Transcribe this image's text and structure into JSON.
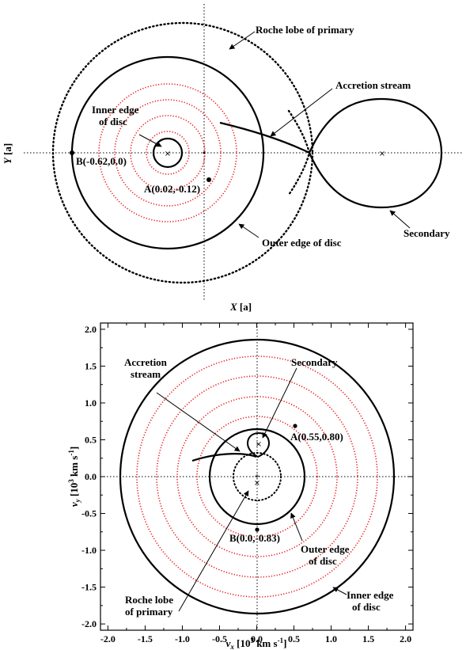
{
  "colors": {
    "red_ring": "#e8191c",
    "ink": "#000000"
  },
  "top_panel": {
    "labels": {
      "roche_lobe": "Roche lobe of primary",
      "accretion_stream": "Accretion stream",
      "inner_edge_1": "Inner edge",
      "inner_edge_2": "of disc",
      "point_b": "B(-0.62,0.0)",
      "point_a": "A(0.02,-0.12)",
      "secondary": "Secondary",
      "outer_edge": "Outer edge of disc"
    },
    "xlabel_var": "X",
    "xlabel_unit": " [a]",
    "ylabel_var": "Y",
    "ylabel_unit": " [a]",
    "points": {
      "A": [
        0.02,
        -0.12
      ],
      "B": [
        -0.62,
        0.0
      ]
    }
  },
  "bottom_panel": {
    "labels": {
      "accretion_1": "Accretion",
      "accretion_2": "stream",
      "secondary": "Secondary",
      "point_a": "A(0.55,0.80)",
      "point_b": "B(0.0,-0.83)",
      "outer_edge_1": "Outer edge",
      "outer_edge_2": "of disc",
      "inner_edge_1": "Inner edge",
      "inner_edge_2": "of disc",
      "roche_1": "Roche lobe",
      "roche_2": "of primary"
    },
    "xlabel": "v",
    "xlabel_sub": "x",
    "xlabel_unit_pre": " [10",
    "xlabel_sup": "3",
    "xlabel_unit_mid": " km s",
    "xlabel_sup2": "-1",
    "xlabel_unit_post": "]",
    "ylabel": "v",
    "ylabel_sub": "y",
    "ylabel_unit_pre": " [10",
    "ylabel_sup": "3",
    "ylabel_unit_mid": " km s",
    "ylabel_sup2": "-1",
    "ylabel_unit_post": "]",
    "xticks": [
      "-2.0",
      "-1.5",
      "-1.0",
      "-0.5",
      "0.0",
      "0.5",
      "1.0",
      "1.5",
      "2.0"
    ],
    "yticks": [
      "2.0",
      "1.5",
      "1.0",
      "0.5",
      "0.0",
      "-0.5",
      "-1.0",
      "-1.5",
      "-2.0"
    ],
    "points": {
      "A": [
        0.55,
        0.8
      ],
      "B": [
        0.0,
        -0.83
      ]
    }
  }
}
